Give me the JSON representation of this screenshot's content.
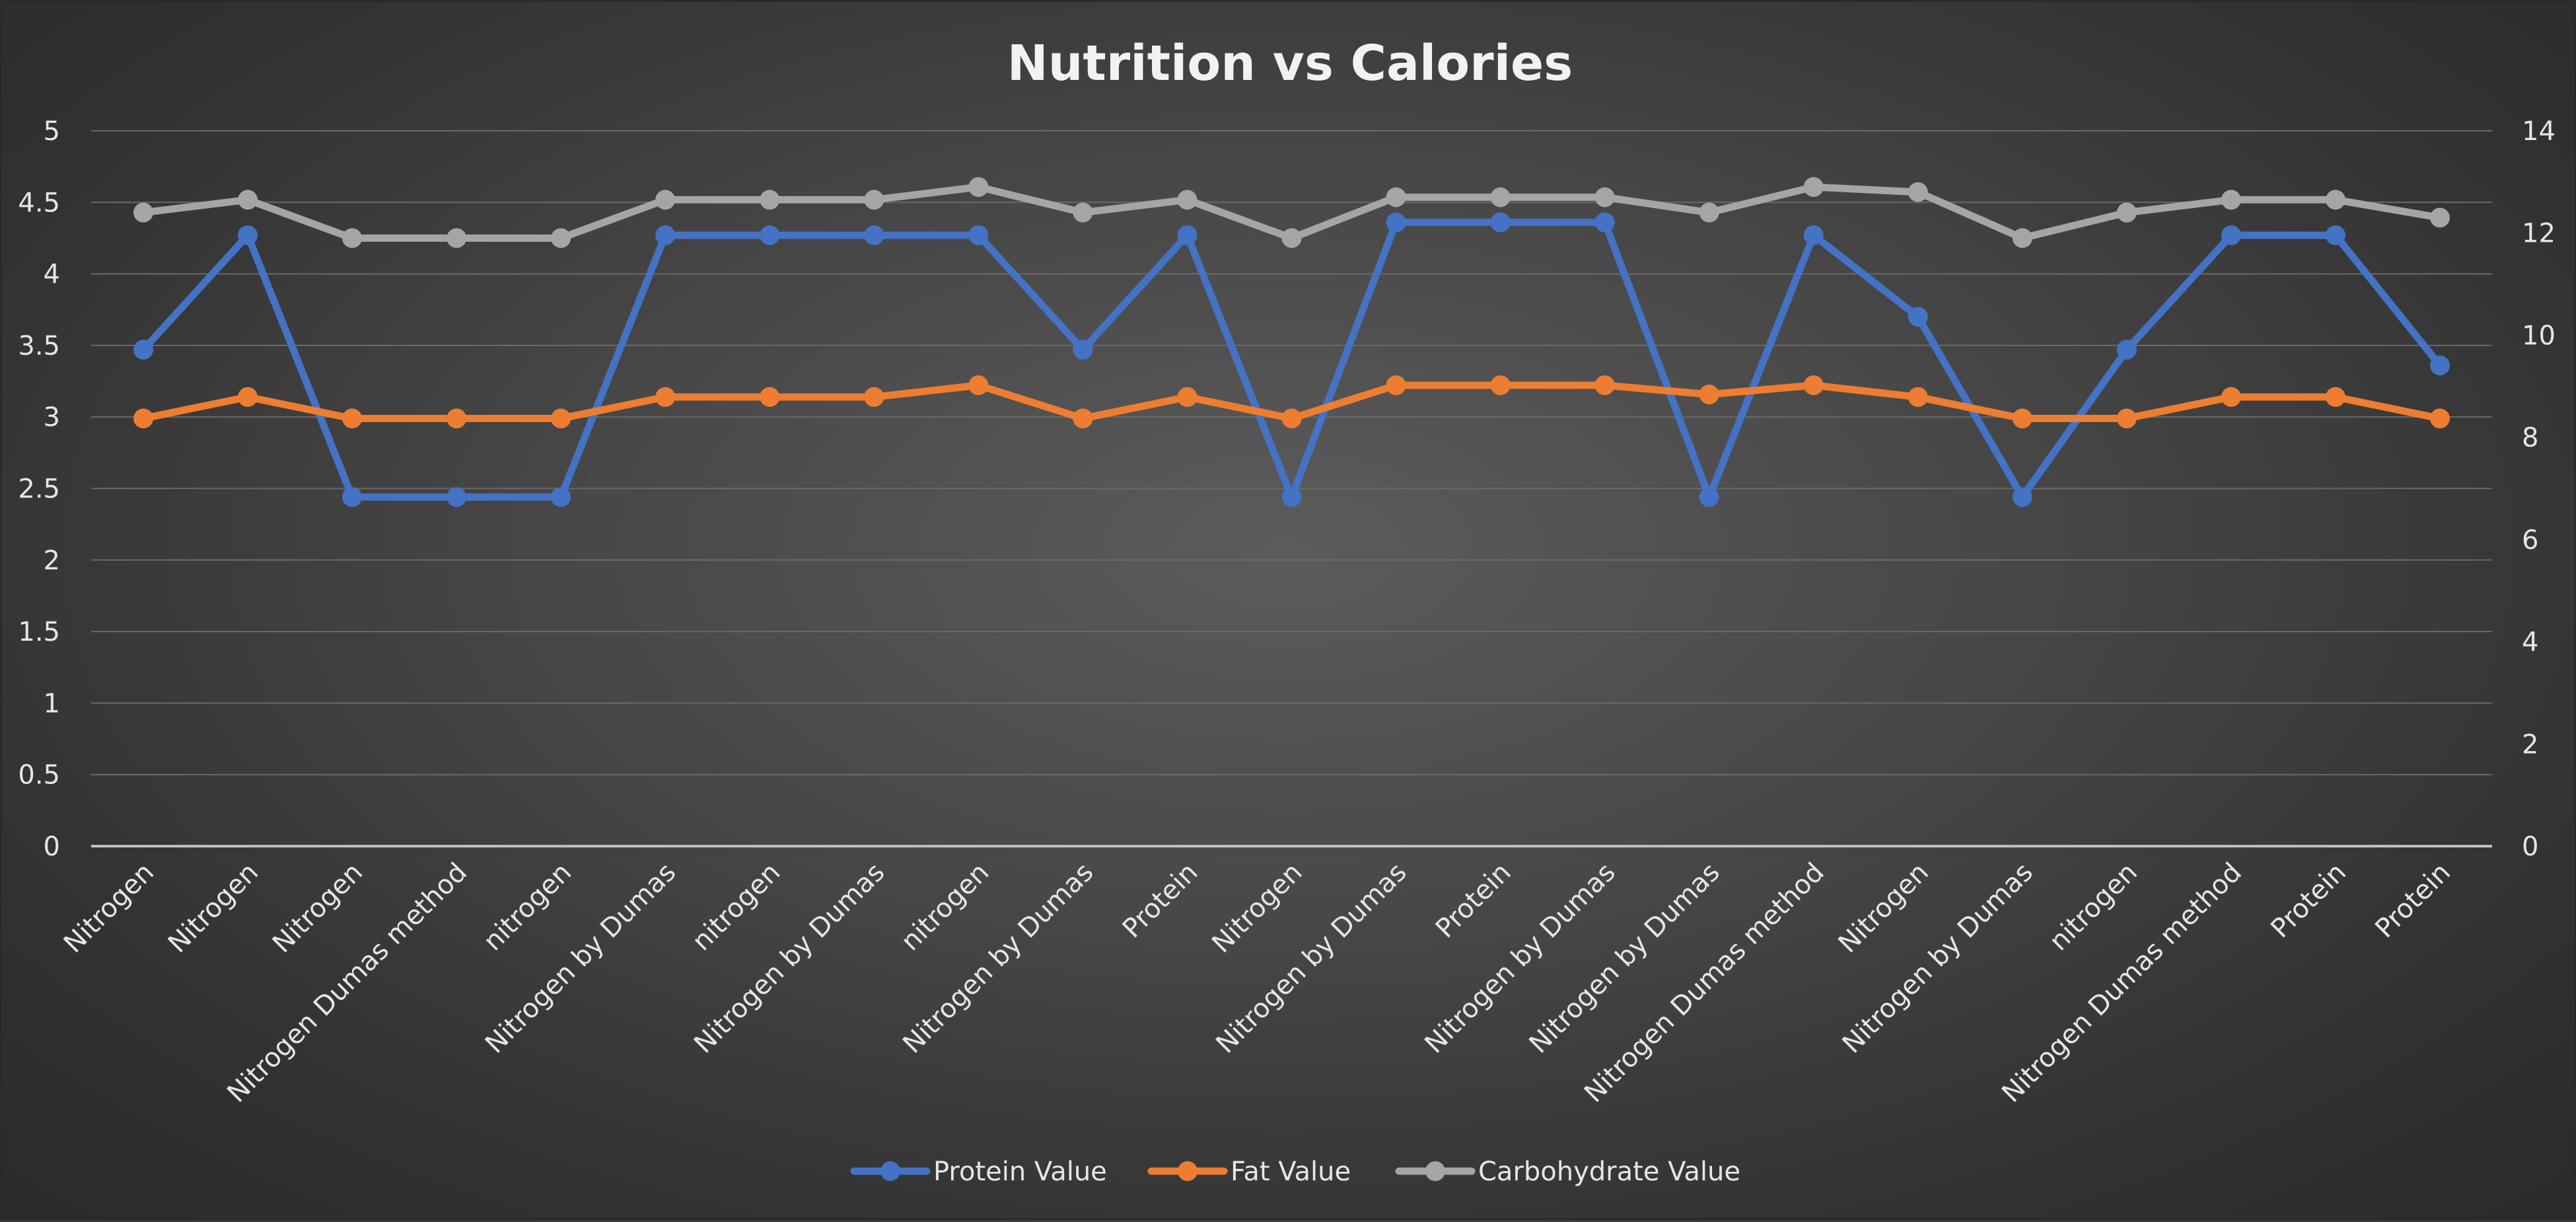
{
  "chart_data": {
    "type": "line",
    "title": "Nutrition vs Calories",
    "xlabel": "",
    "ylabel": "",
    "ylim": [
      0,
      5
    ],
    "y2lim": [
      0,
      14
    ],
    "y_ticks": [
      "0",
      "0.5",
      "1",
      "1.5",
      "2",
      "2.5",
      "3",
      "3.5",
      "4",
      "4.5",
      "5"
    ],
    "y2_ticks": [
      "0",
      "2",
      "4",
      "6",
      "8",
      "10",
      "12",
      "14"
    ],
    "grid": true,
    "legend_position": "bottom",
    "categories": [
      "Nitrogen",
      "Nitrogen",
      "Nitrogen",
      "Nitrogen Dumas method",
      "nitrogen",
      "Nitrogen by Dumas",
      "nitrogen",
      "Nitrogen by Dumas",
      "nitrogen",
      "Nitrogen by Dumas",
      "Protein",
      "Nitrogen",
      "Nitrogen by Dumas",
      "Protein",
      "Nitrogen by Dumas",
      "Nitrogen by Dumas",
      "Nitrogen Dumas method",
      "Nitrogen",
      "Nitrogen by Dumas",
      "nitrogen",
      "Nitrogen Dumas method",
      "Protein",
      "Protein"
    ],
    "series": [
      {
        "name": "Protein Value",
        "color": "#4472c4",
        "axis": "left",
        "values": [
          3.47,
          4.27,
          2.44,
          2.44,
          2.44,
          4.27,
          4.27,
          4.27,
          4.27,
          3.47,
          4.27,
          2.44,
          4.36,
          4.36,
          4.36,
          2.44,
          4.27,
          3.7,
          2.44,
          3.47,
          4.27,
          4.27,
          3.36
        ]
      },
      {
        "name": "Fat Value",
        "color": "#ed7d31",
        "axis": "right",
        "values": [
          8.37,
          8.79,
          8.37,
          8.37,
          8.37,
          8.79,
          8.79,
          8.79,
          9.02,
          8.37,
          8.79,
          8.37,
          9.02,
          9.02,
          9.02,
          8.84,
          9.02,
          8.79,
          8.37,
          8.37,
          8.79,
          8.79,
          8.37
        ]
      },
      {
        "name": "Carbohydrate Value",
        "color": "#a5a5a5",
        "axis": "right",
        "values": [
          12.4,
          12.65,
          11.9,
          11.9,
          11.9,
          12.65,
          12.65,
          12.65,
          12.9,
          12.4,
          12.65,
          11.9,
          12.7,
          12.7,
          12.7,
          12.4,
          12.9,
          12.8,
          11.9,
          12.4,
          12.65,
          12.65,
          12.3
        ]
      }
    ]
  }
}
